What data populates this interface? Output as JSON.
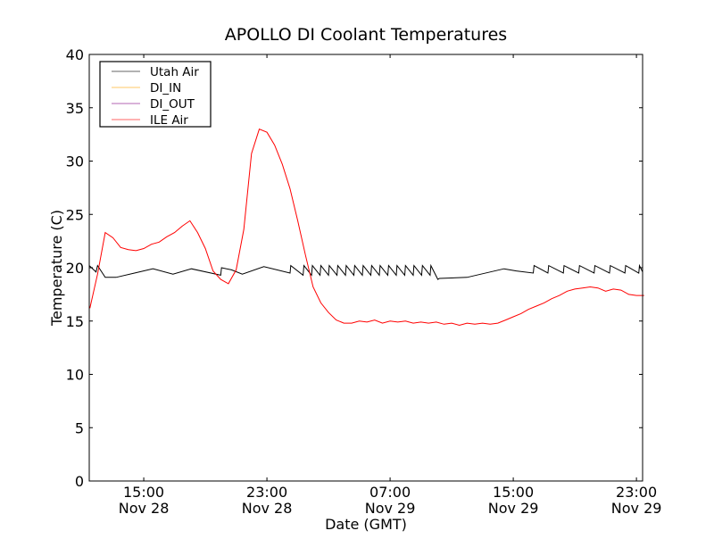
{
  "chart_data": {
    "type": "line",
    "title": "APOLLO DI Coolant Temperatures",
    "xlabel": "Date (GMT)",
    "ylabel": "Temperature (C)",
    "x_units": "hours since Nov 28 00:00 GMT",
    "xlim": [
      11.46,
      47.4
    ],
    "ylim": [
      0,
      40
    ],
    "yticks": [
      0,
      5,
      10,
      15,
      20,
      25,
      30,
      35,
      40
    ],
    "xticks": [
      {
        "value": 15,
        "time": "15:00",
        "date": "Nov 28"
      },
      {
        "value": 23,
        "time": "23:00",
        "date": "Nov 28"
      },
      {
        "value": 31,
        "time": "07:00",
        "date": "Nov 29"
      },
      {
        "value": 39,
        "time": "15:00",
        "date": "Nov 29"
      },
      {
        "value": 47,
        "time": "23:00",
        "date": "Nov 29"
      }
    ],
    "grid": false,
    "legend_position": "top-left",
    "series": [
      {
        "name": "Utah Air",
        "color": "#000000",
        "points": [
          [
            11.46,
            20.2
          ],
          [
            11.9,
            19.6
          ],
          [
            12.0,
            20.2
          ],
          [
            12.5,
            19.1
          ],
          [
            13.2,
            19.1
          ],
          [
            14.4,
            19.5
          ],
          [
            15.6,
            19.9
          ],
          [
            16.9,
            19.4
          ],
          [
            18.1,
            19.9
          ],
          [
            20.0,
            19.3
          ],
          [
            20.05,
            20.0
          ],
          [
            20.7,
            19.8
          ],
          [
            21.4,
            19.4
          ],
          [
            22.8,
            20.1
          ],
          [
            24.5,
            19.5
          ],
          [
            24.55,
            20.2
          ],
          [
            25.35,
            19.3
          ],
          [
            25.4,
            20.2
          ],
          [
            25.9,
            19.3
          ],
          [
            25.95,
            20.2
          ],
          [
            26.45,
            19.3
          ],
          [
            26.5,
            20.2
          ],
          [
            27.0,
            19.3
          ],
          [
            27.05,
            20.2
          ],
          [
            27.55,
            19.3
          ],
          [
            27.6,
            20.2
          ],
          [
            28.1,
            19.3
          ],
          [
            28.15,
            20.2
          ],
          [
            28.65,
            19.3
          ],
          [
            28.7,
            20.2
          ],
          [
            29.2,
            19.3
          ],
          [
            29.25,
            20.2
          ],
          [
            29.75,
            19.3
          ],
          [
            29.8,
            20.2
          ],
          [
            30.3,
            19.3
          ],
          [
            30.35,
            20.2
          ],
          [
            30.85,
            19.3
          ],
          [
            30.9,
            20.2
          ],
          [
            31.4,
            19.3
          ],
          [
            31.45,
            20.2
          ],
          [
            31.95,
            19.3
          ],
          [
            32.0,
            20.2
          ],
          [
            32.5,
            19.3
          ],
          [
            32.55,
            20.2
          ],
          [
            33.05,
            19.3
          ],
          [
            33.1,
            20.2
          ],
          [
            33.6,
            19.3
          ],
          [
            33.65,
            20.2
          ],
          [
            34.1,
            18.9
          ],
          [
            34.2,
            19.0
          ],
          [
            36.0,
            19.1
          ],
          [
            38.4,
            19.9
          ],
          [
            39.2,
            19.7
          ],
          [
            40.3,
            19.5
          ],
          [
            40.35,
            20.2
          ],
          [
            41.25,
            19.5
          ],
          [
            41.3,
            20.2
          ],
          [
            42.25,
            19.5
          ],
          [
            42.3,
            20.2
          ],
          [
            43.25,
            19.5
          ],
          [
            43.3,
            20.2
          ],
          [
            44.25,
            19.5
          ],
          [
            44.3,
            20.2
          ],
          [
            45.25,
            19.5
          ],
          [
            45.3,
            20.2
          ],
          [
            46.25,
            19.5
          ],
          [
            46.3,
            20.2
          ],
          [
            47.15,
            19.5
          ],
          [
            47.2,
            20.2
          ],
          [
            47.4,
            19.6
          ]
        ]
      },
      {
        "name": "DI_IN",
        "color": "#ffa500",
        "points": []
      },
      {
        "name": "DI_OUT",
        "color": "#800080",
        "points": []
      },
      {
        "name": "ILE Air",
        "color": "#ff0000",
        "x0": 11.5,
        "dx": 0.5,
        "values": [
          16.2,
          19.4,
          23.3,
          22.8,
          21.9,
          21.7,
          21.6,
          21.8,
          22.2,
          22.4,
          22.9,
          23.3,
          23.9,
          24.4,
          23.3,
          21.8,
          19.7,
          18.9,
          18.5,
          19.8,
          23.6,
          30.7,
          33.0,
          32.7,
          31.5,
          29.7,
          27.4,
          24.4,
          21.2,
          18.2,
          16.7,
          15.8,
          15.1,
          14.8,
          14.8,
          15.0,
          14.9,
          15.1,
          14.8,
          15.0,
          14.9,
          15.0,
          14.8,
          14.9,
          14.8,
          14.9,
          14.7,
          14.8,
          14.6,
          14.8,
          14.7,
          14.8,
          14.7,
          14.8,
          15.1,
          15.4,
          15.7,
          16.1,
          16.4,
          16.7,
          17.1,
          17.4,
          17.8,
          18.0,
          18.1,
          18.2,
          18.1,
          17.8,
          18.0,
          17.9,
          17.5,
          17.4,
          17.4
        ]
      }
    ]
  }
}
